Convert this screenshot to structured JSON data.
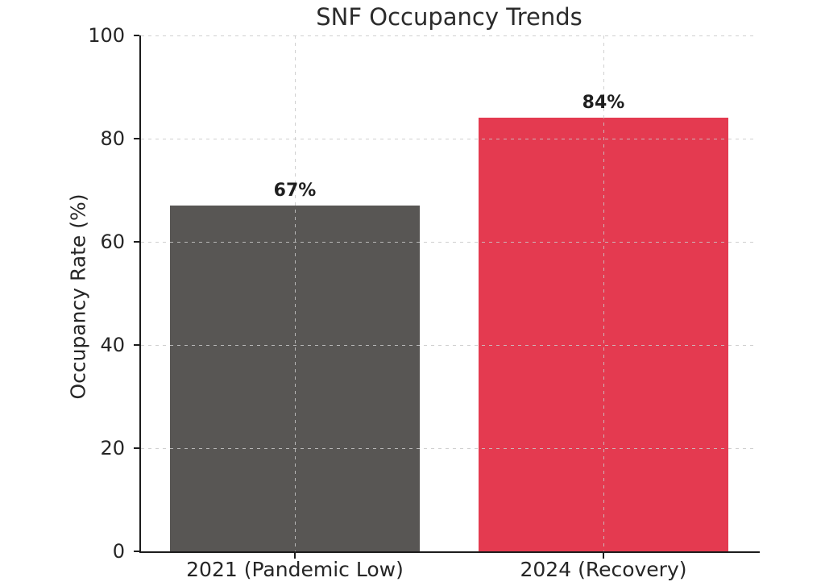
{
  "chart_data": {
    "type": "bar",
    "title": "SNF Occupancy Trends",
    "xlabel": "",
    "ylabel": "Occupancy Rate (%)",
    "categories": [
      "2021 (Pandemic Low)",
      "2024 (Recovery)"
    ],
    "values": [
      67,
      84
    ],
    "value_labels": [
      "67%",
      "84%"
    ],
    "bar_colors": [
      "#585654",
      "#E43A50"
    ],
    "ylim": [
      0,
      100
    ],
    "yticks": [
      "0",
      "20",
      "40",
      "60",
      "80",
      "100"
    ],
    "ytick_values": [
      0,
      20,
      40,
      60,
      80,
      100
    ],
    "grid": "dashed light-gray horizontal lines at y ticks and vertical lines at category centers, drawn over bars",
    "legend": "none",
    "colors": {
      "background": "#ffffff",
      "spine": "#1c1c1c",
      "grid": "#c8c8c8",
      "text": "#262626",
      "bar_2021": "#585654",
      "bar_2024": "#E43A50"
    }
  }
}
